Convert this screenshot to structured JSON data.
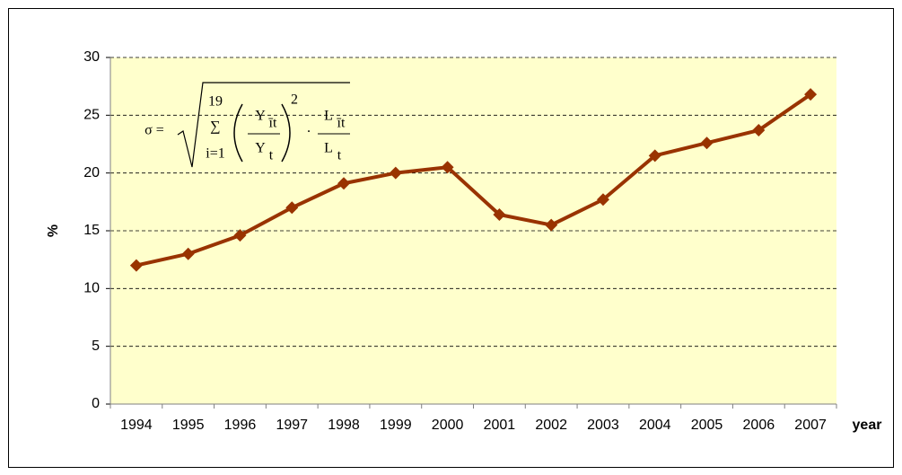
{
  "chart_data": {
    "type": "line",
    "categories": [
      "1994",
      "1995",
      "1996",
      "1997",
      "1998",
      "1999",
      "2000",
      "2001",
      "2002",
      "2003",
      "2004",
      "2005",
      "2006",
      "2007"
    ],
    "series": [
      {
        "color": "#993300",
        "values": [
          12.0,
          13.0,
          14.6,
          17.0,
          19.1,
          20.0,
          20.5,
          16.4,
          15.5,
          17.7,
          21.5,
          22.6,
          23.7,
          26.8
        ]
      }
    ],
    "ylim": [
      0,
      30
    ],
    "yticks": [
      0,
      5,
      10,
      15,
      20,
      25,
      30
    ],
    "grid": true,
    "y_label": "%",
    "x_label": "year",
    "annotation": {
      "lhs": "σ =",
      "sum": "∑",
      "sum_upper": "19",
      "sum_lower": "i=1",
      "y_num": "Y",
      "y_num_sub": "īt",
      "y_den": "Y",
      "y_den_sub": "t",
      "exponent": "2",
      "dot": "·",
      "l_num": "L",
      "l_num_sub": "īt",
      "l_den": "L",
      "l_den_sub": "t"
    }
  }
}
